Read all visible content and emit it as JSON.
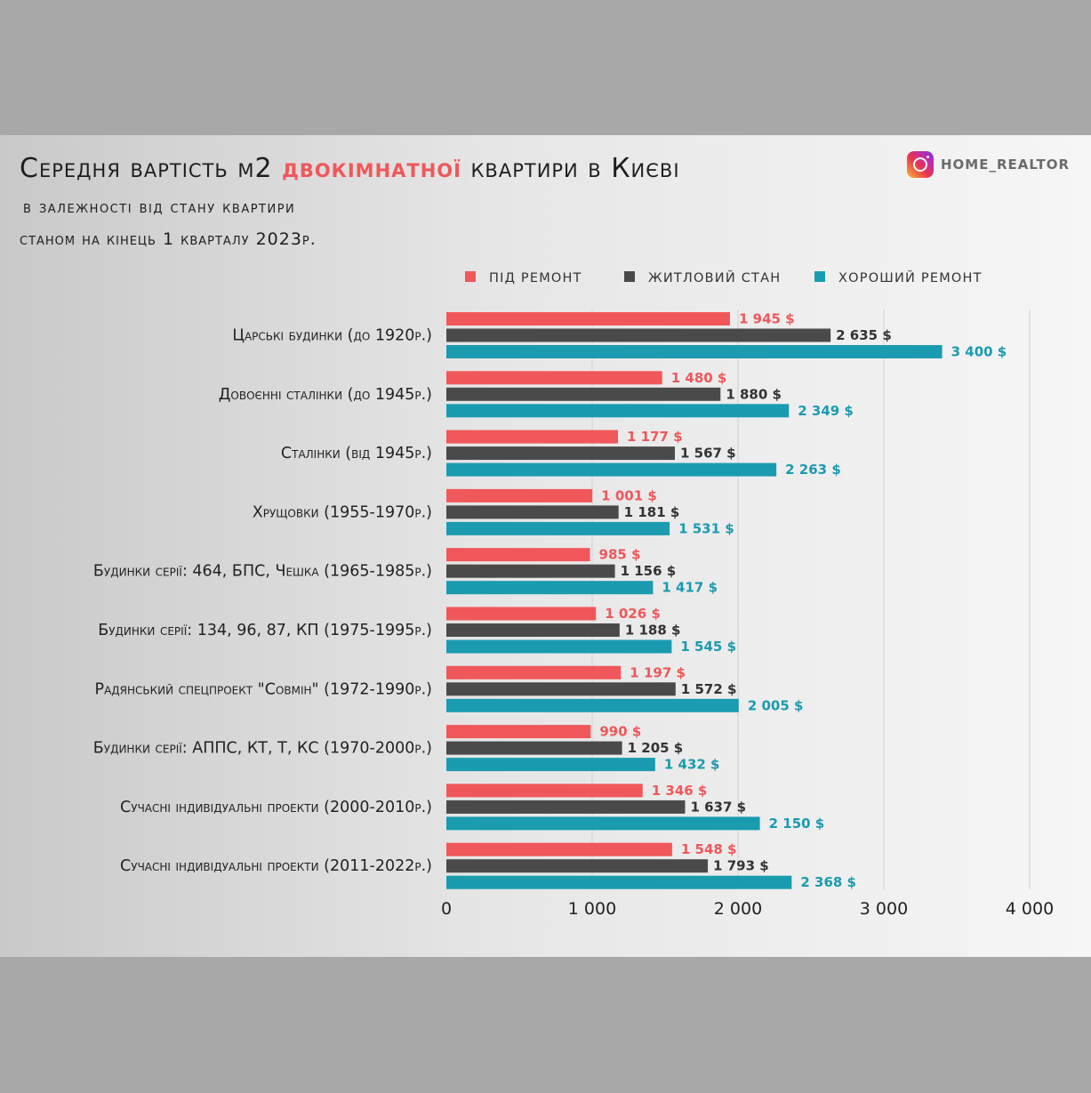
{
  "header": {
    "title_part1": "Середня вартість м2",
    "title_accent": "двокімнатної",
    "title_part2": "квартири в Києві",
    "subtitle1": "в залежності від стану квартири",
    "subtitle2": "станом на кінець 1 кварталу 2023р.",
    "brand": "HOME_REALTOR",
    "brand_icon": "instagram-icon"
  },
  "chart_data": {
    "type": "bar",
    "orientation": "horizontal",
    "categories": [
      "Царські будинки (до 1920р.)",
      "Довоєнні сталінки (до 1945р.)",
      "Сталінки (від 1945р.)",
      "Хрущовки  (1955-1970р.)",
      "Будинки серії: 464, БПС, Чешка (1965-1985р.)",
      "Будинки серії: 134, 96, 87, КП (1975-1995р.)",
      "Радянський спецпроект \"Совмін\" (1972-1990р.)",
      "Будинки серії: АППС, КТ, Т, КС (1970-2000р.)",
      "Сучасні індивідуальні проекти (2000-2010р.)",
      "Сучасні індивідуальні проекти (2011-2022р.)"
    ],
    "series": [
      {
        "name": "під ремонт",
        "color": "#f0575a",
        "values": [
          1945,
          1480,
          1177,
          1001,
          985,
          1026,
          1197,
          990,
          1346,
          1548
        ],
        "labels": [
          "1 945 $",
          "1 480 $",
          "1 177 $",
          "1 001 $",
          "985 $",
          "1 026 $",
          "1 197 $",
          "990 $",
          "1 346 $",
          "1 548 $"
        ]
      },
      {
        "name": "житловий стан",
        "color": "#4a4a4a",
        "values": [
          2635,
          1880,
          1567,
          1181,
          1156,
          1188,
          1572,
          1205,
          1637,
          1793
        ],
        "labels": [
          "2 635 $",
          "1 880 $",
          "1 567 $",
          "1 181 $",
          "1 156 $",
          "1 188 $",
          "1 572 $",
          "1 205 $",
          "1 637 $",
          "1 793 $"
        ]
      },
      {
        "name": "хороший ремонт",
        "color": "#1a9bb0",
        "values": [
          3400,
          2349,
          2263,
          1531,
          1417,
          1545,
          2005,
          1432,
          2150,
          2368
        ],
        "labels": [
          "3 400 $",
          "2 349 $",
          "2 263 $",
          "1 531 $",
          "1 417 $",
          "1 545 $",
          "2 005 $",
          "1 432 $",
          "2 150 $",
          "2 368 $"
        ]
      }
    ],
    "xlim": [
      0,
      4000
    ],
    "xticks": [
      0,
      1000,
      2000,
      3000,
      4000
    ],
    "xtick_labels": [
      "0",
      "1 000",
      "2 000",
      "3 000",
      "4 000"
    ],
    "grid": true,
    "legend_position": "top"
  }
}
